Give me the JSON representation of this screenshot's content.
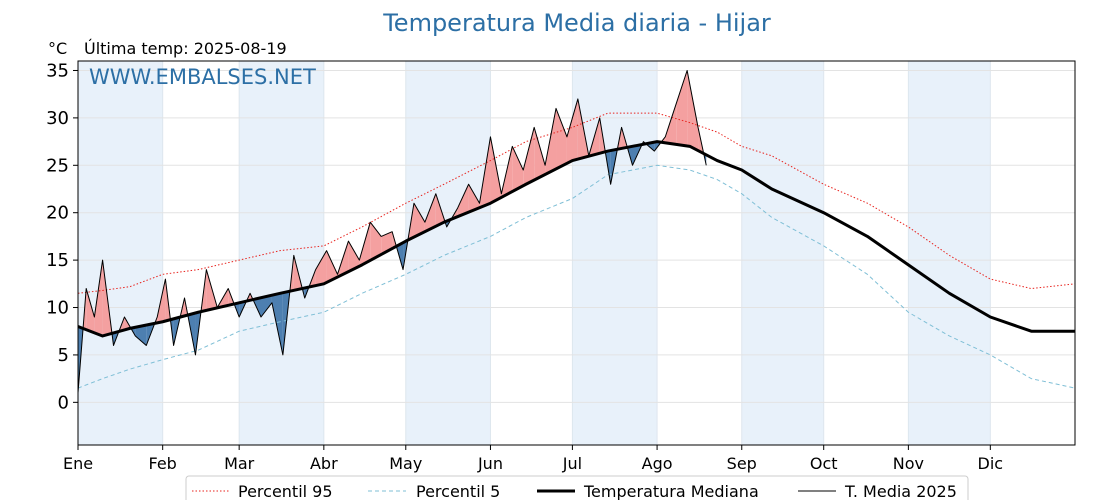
{
  "chart_data": {
    "type": "line",
    "title": "Temperatura Media diaria - Hijar",
    "unit_label": "°C",
    "last_reading": "Última temp: 2025-08-19",
    "watermark": "WWW.EMBALSES.NET",
    "ylim": [
      -4.5,
      36
    ],
    "yticks": [
      0,
      5,
      10,
      15,
      20,
      25,
      30,
      35
    ],
    "x_range_days": [
      1,
      366
    ],
    "month_labels": [
      "Ene",
      "Feb",
      "Mar",
      "Abr",
      "May",
      "Jun",
      "Jul",
      "Ago",
      "Sep",
      "Oct",
      "Nov",
      "Dic"
    ],
    "month_start_days": [
      1,
      32,
      60,
      91,
      121,
      152,
      182,
      213,
      244,
      274,
      305,
      335
    ],
    "grid": true,
    "legend_position": "bottom",
    "colors": {
      "p95": "#e8231e",
      "p5": "#7fbfd6",
      "median": "#000000",
      "current": "#000000",
      "above_fill": "#f4a0a0",
      "below_fill": "#4d7fb0",
      "title": "#2c6fa5",
      "band": "#e8f1fa"
    },
    "series": [
      {
        "name": "Percentil 95",
        "style": "dotted",
        "color": "#e8231e",
        "x": [
          1,
          10,
          20,
          32,
          45,
          60,
          75,
          91,
          105,
          121,
          135,
          152,
          165,
          182,
          195,
          213,
          225,
          235,
          244,
          255,
          274,
          290,
          305,
          320,
          335,
          350,
          366
        ],
        "y": [
          11.5,
          11.8,
          12.2,
          13.5,
          14.0,
          15.0,
          16.0,
          16.5,
          18.5,
          21.0,
          23.0,
          25.5,
          27.5,
          29.0,
          30.5,
          30.5,
          29.5,
          28.5,
          27.0,
          26.0,
          23.0,
          21.0,
          18.5,
          15.5,
          13.0,
          12.0,
          12.5
        ]
      },
      {
        "name": "Percentil 5",
        "style": "dashed",
        "color": "#7fbfd6",
        "x": [
          1,
          10,
          20,
          32,
          45,
          60,
          75,
          91,
          105,
          121,
          135,
          152,
          165,
          182,
          195,
          213,
          225,
          235,
          244,
          255,
          274,
          290,
          305,
          320,
          335,
          350,
          366
        ],
        "y": [
          1.5,
          2.5,
          3.5,
          4.5,
          5.5,
          7.5,
          8.5,
          9.5,
          11.5,
          13.5,
          15.5,
          17.5,
          19.5,
          21.5,
          24.0,
          25.0,
          24.5,
          23.5,
          22.0,
          19.5,
          16.5,
          13.5,
          9.5,
          7.0,
          5.0,
          2.5,
          1.5
        ]
      },
      {
        "name": "Temperatura Mediana",
        "style": "thick",
        "color": "#000000",
        "x": [
          1,
          10,
          20,
          32,
          45,
          60,
          75,
          91,
          105,
          121,
          135,
          152,
          165,
          182,
          195,
          213,
          225,
          235,
          244,
          255,
          274,
          290,
          305,
          320,
          335,
          350,
          366
        ],
        "y": [
          8.0,
          7.0,
          7.8,
          8.5,
          9.5,
          10.5,
          11.5,
          12.5,
          14.5,
          17.0,
          19.0,
          21.0,
          23.0,
          25.5,
          26.5,
          27.5,
          27.0,
          25.5,
          24.5,
          22.5,
          20.0,
          17.5,
          14.5,
          11.5,
          9.0,
          7.5,
          7.5
        ]
      },
      {
        "name": "T. Media 2025",
        "style": "thin",
        "color": "#000000",
        "x": [
          1,
          4,
          7,
          10,
          14,
          18,
          22,
          26,
          30,
          33,
          36,
          40,
          44,
          48,
          52,
          56,
          60,
          64,
          68,
          72,
          76,
          80,
          84,
          88,
          92,
          96,
          100,
          104,
          108,
          112,
          116,
          120,
          124,
          128,
          132,
          136,
          140,
          144,
          148,
          152,
          156,
          160,
          164,
          168,
          172,
          176,
          180,
          184,
          188,
          192,
          196,
          200,
          204,
          208,
          212,
          216,
          220,
          224,
          228,
          231
        ],
        "y": [
          1.0,
          12.0,
          9.0,
          15.0,
          6.0,
          9.0,
          7.0,
          6.0,
          9.0,
          13.0,
          6.0,
          11.0,
          5.0,
          14.0,
          10.0,
          12.0,
          9.0,
          11.5,
          9.0,
          10.5,
          5.0,
          15.5,
          11.0,
          14.0,
          16.0,
          13.5,
          17.0,
          15.0,
          19.0,
          17.5,
          18.0,
          14.0,
          21.0,
          19.0,
          22.0,
          18.5,
          20.5,
          23.0,
          21.0,
          28.0,
          22.0,
          27.0,
          24.5,
          29.0,
          25.0,
          31.0,
          28.0,
          32.0,
          26.0,
          30.0,
          23.0,
          29.0,
          25.0,
          27.5,
          26.5,
          28.0,
          31.5,
          35.0,
          29.0,
          25.0
        ]
      }
    ]
  }
}
